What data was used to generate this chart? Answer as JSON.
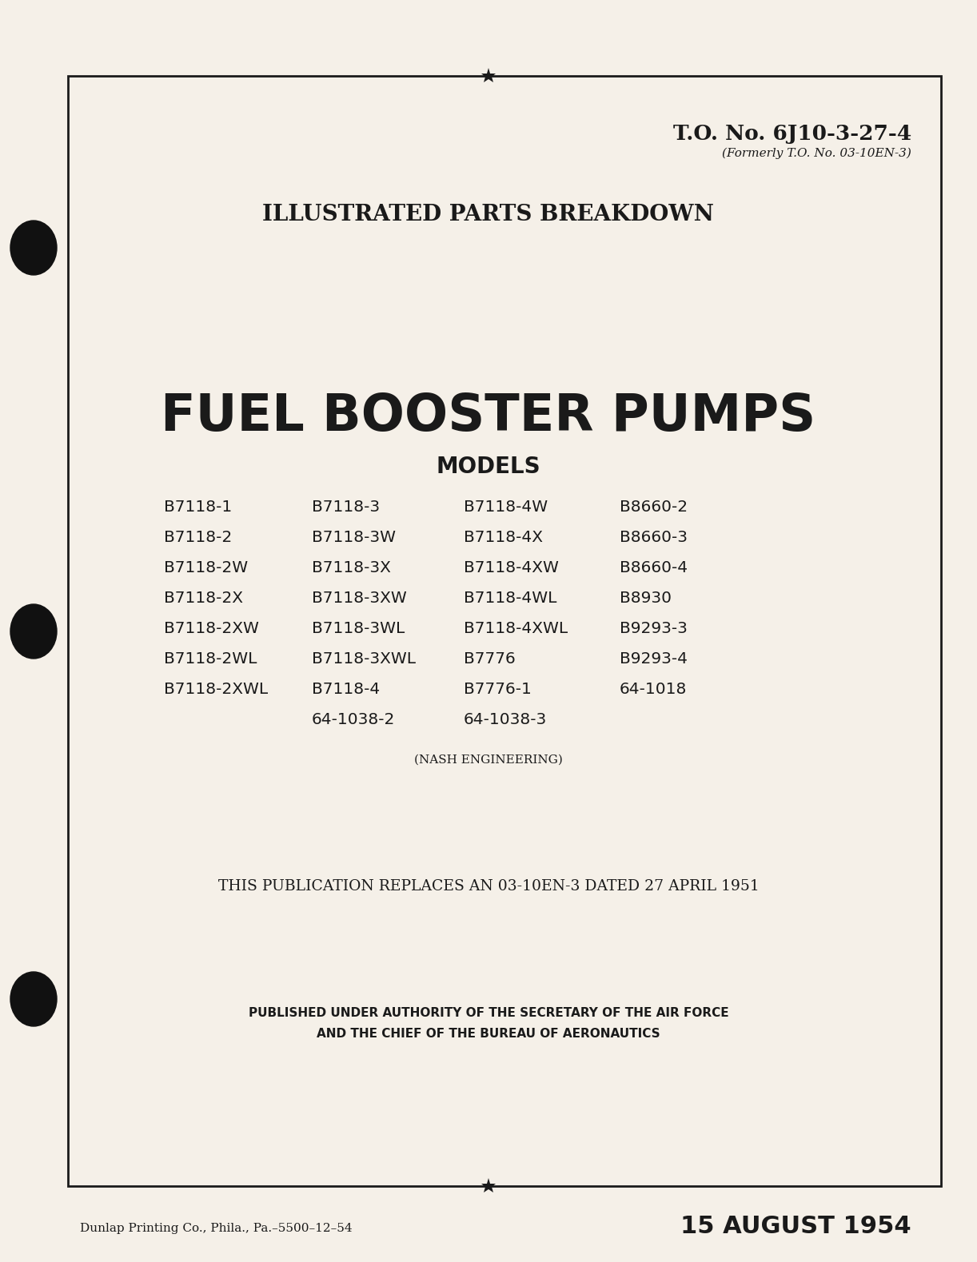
{
  "bg_color": "#f5f0e8",
  "page_bg": "#f5f0e8",
  "text_color": "#1a1a1a",
  "to_number": "T.O. No. 6J10-3-27-4",
  "formerly": "(Formerly T.O. No. 03-10EN-3)",
  "ipb_title": "ILLUSTRATED PARTS BREAKDOWN",
  "main_title": "FUEL BOOSTER PUMPS",
  "models_label": "MODELS",
  "col1": [
    "B7118-1",
    "B7118-2",
    "B7118-2W",
    "B7118-2X",
    "B7118-2XW",
    "B7118-2WL",
    "B7118-2XWL"
  ],
  "col2": [
    "B7118-3",
    "B7118-3W",
    "B7118-3X",
    "B7118-3XW",
    "B7118-3WL",
    "B7118-3XWL",
    "B7118-4",
    "64-1038-2"
  ],
  "col3": [
    "B7118-4W",
    "B7118-4X",
    "B7118-4XW",
    "B7118-4WL",
    "B7118-4XWL",
    "B7776",
    "B7776-1",
    "64-1038-3"
  ],
  "col4": [
    "B8660-2",
    "B8660-3",
    "B8660-4",
    "B8930",
    "B9293-3",
    "B9293-4",
    "64-1018"
  ],
  "nash": "(NASH ENGINEERING)",
  "replaces": "THIS PUBLICATION REPLACES AN 03-10EN-3 DATED 27 APRIL 1951",
  "authority_line1": "PUBLISHED UNDER AUTHORITY OF THE SECRETARY OF THE AIR FORCE",
  "authority_line2": "AND THE CHIEF OF THE BUREAU OF AERONAUTICS",
  "printer": "Dunlap Printing Co., Phila., Pa.–5500–12–54",
  "date": "15 AUGUST 1954",
  "border_color": "#1a1a1a",
  "star_color": "#1a1a1a"
}
